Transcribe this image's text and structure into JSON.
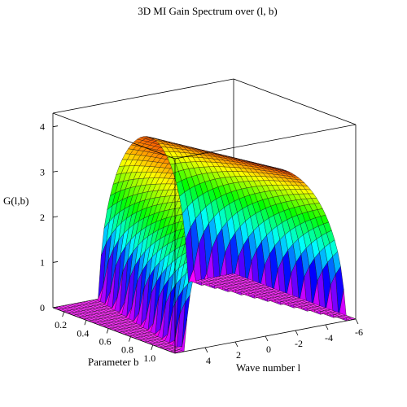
{
  "chart_data": {
    "type": "surface3d",
    "title": "3D MI Gain Spectrum over (l, b)",
    "xlabel": "Wave number l",
    "ylabel": "Parameter b",
    "zlabel": "G(l,b)",
    "x_range": [
      -6,
      6
    ],
    "y_range": [
      0.1,
      1.2
    ],
    "z_range": [
      0,
      4.3
    ],
    "x_ticks": [
      "-6",
      "-4",
      "-2",
      "0",
      "2",
      "4"
    ],
    "y_ticks": [
      "0.2",
      "0.4",
      "0.6",
      "0.8",
      "1.0"
    ],
    "z_ticks": [
      "0",
      "1",
      "2",
      "3",
      "4"
    ],
    "gain_band": {
      "l_min": -5.3,
      "l_max": 5.3,
      "peak_gain": 3.7
    },
    "colormap": "hsv",
    "grid": false,
    "legend": "none"
  }
}
